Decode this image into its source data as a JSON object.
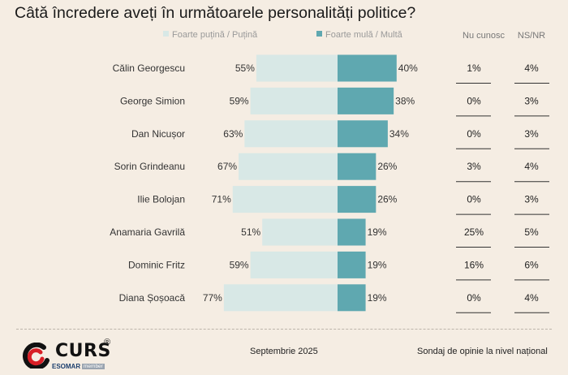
{
  "title": "Câtă încredere aveți în următoarele personalități politice?",
  "legend": {
    "low_label": "Foarte puțină / Puțină",
    "high_label": "Foarte mulă / Multă",
    "low_color": "#d8e8e6",
    "high_color": "#5fa8b0"
  },
  "columns": {
    "unknown_label": "Nu cunosc",
    "nsnr_label": "NS/NR"
  },
  "chart_data": {
    "type": "bar",
    "subtype": "diverging-horizontal",
    "categories": [
      "Călin Georgescu",
      "George Simion",
      "Dan Nicușor",
      "Sorin Grindeanu",
      "Ilie Bolojan",
      "Anamaria Gavrilă",
      "Dominic Fritz",
      "Diana Șoșoacă"
    ],
    "series": [
      {
        "name": "Foarte puțină / Puțină",
        "values": [
          55,
          59,
          63,
          67,
          71,
          51,
          59,
          77
        ],
        "color": "#d8e8e6"
      },
      {
        "name": "Foarte mulă / Multă",
        "values": [
          40,
          38,
          34,
          26,
          26,
          19,
          19,
          19
        ],
        "color": "#5fa8b0"
      }
    ],
    "unknown": [
      1,
      0,
      0,
      3,
      0,
      25,
      16,
      0
    ],
    "nsnr": [
      4,
      3,
      3,
      4,
      3,
      5,
      6,
      4
    ],
    "unit": "%"
  },
  "footer": {
    "brand": "CURS",
    "registered": "®",
    "esomar": "ESOMAR",
    "member": "member",
    "date": "Septembrie 2025",
    "description": "Sondaj de opinie la nivel național"
  }
}
